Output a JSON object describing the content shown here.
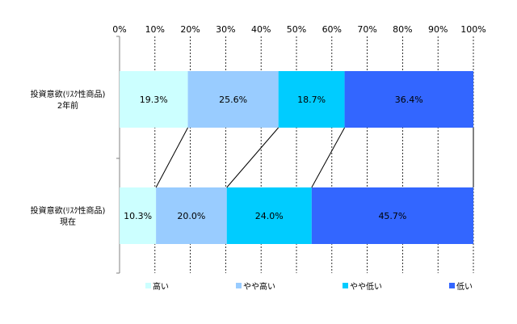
{
  "chart_data": {
    "type": "bar",
    "orientation": "horizontal",
    "stacked": true,
    "normalized": true,
    "xlim": [
      0,
      100
    ],
    "x_tick_labels": [
      "0%",
      "10%",
      "20%",
      "30%",
      "40%",
      "50%",
      "60%",
      "70%",
      "80%",
      "90%",
      "100%"
    ],
    "grid": true,
    "legend_position": "bottom",
    "categories": [
      [
        "投資意欲(ﾘｽｸ性商品)",
        "2年前"
      ],
      [
        "投資意欲(ﾘｽｸ性商品)",
        "現在"
      ]
    ],
    "series": [
      {
        "name": "高い",
        "color": "#ccffff",
        "values": [
          19.3,
          10.3
        ],
        "labels": [
          "19.3%",
          "10.3%"
        ]
      },
      {
        "name": "やや高い",
        "color": "#99ccff",
        "values": [
          25.6,
          20.0
        ],
        "labels": [
          "25.6%",
          "20.0%"
        ]
      },
      {
        "name": "やや低い",
        "color": "#00ccff",
        "values": [
          18.7,
          24.0
        ],
        "labels": [
          "18.7%",
          "24.0%"
        ]
      },
      {
        "name": "低い",
        "color": "#3366ff",
        "values": [
          36.4,
          45.7
        ],
        "labels": [
          "36.4%",
          "45.7%"
        ]
      }
    ]
  }
}
